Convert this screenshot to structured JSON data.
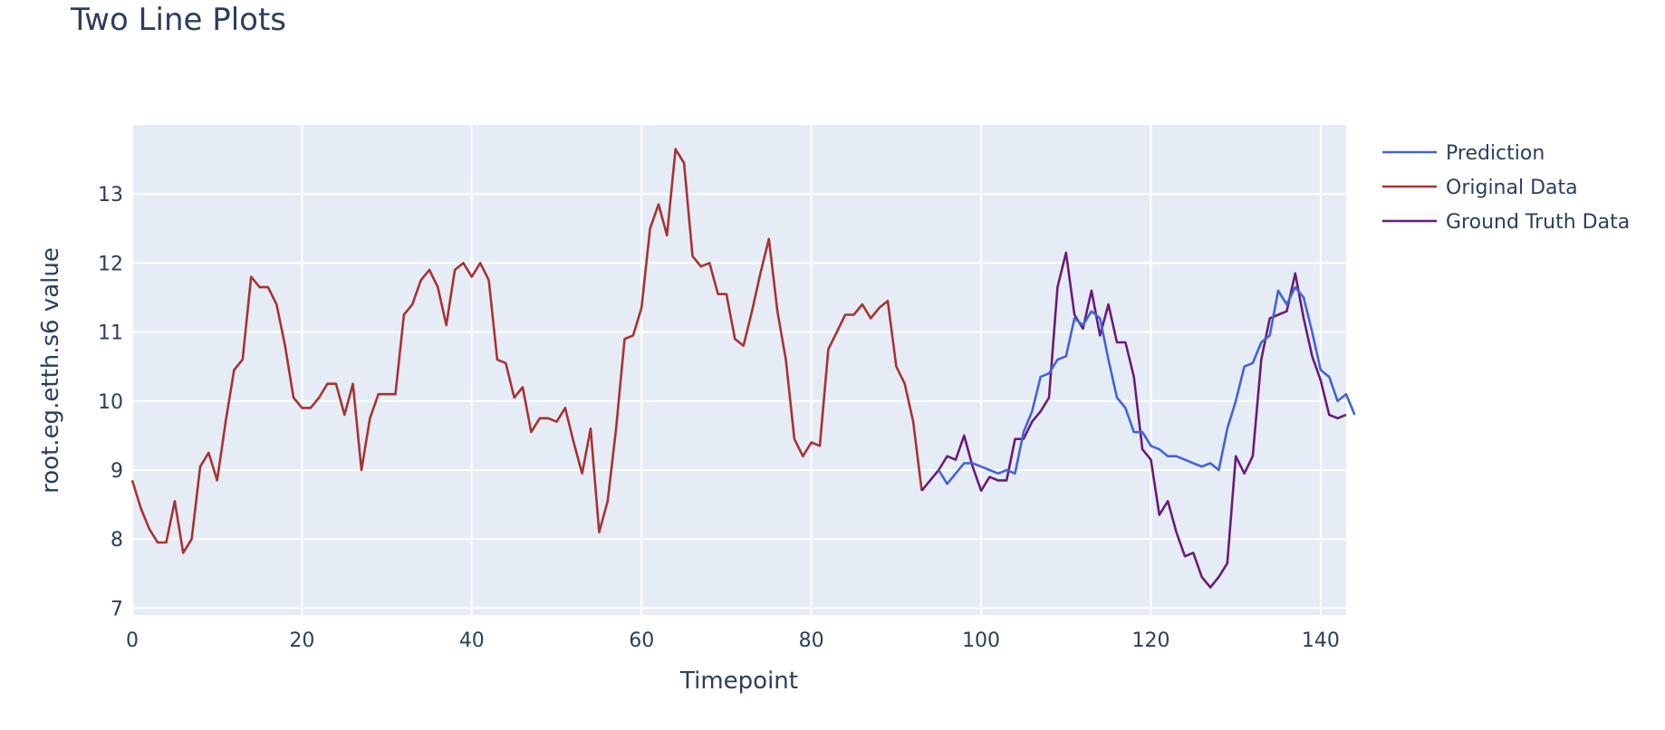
{
  "chart_data": {
    "type": "line",
    "title": "Two Line Plots",
    "xlabel": "Timepoint",
    "ylabel": "root.eg.etth.s6 value",
    "xlim": [
      0,
      143
    ],
    "ylim": [
      6.9,
      14
    ],
    "xticks": [
      0,
      20,
      40,
      60,
      80,
      100,
      120,
      140
    ],
    "yticks": [
      7,
      8,
      9,
      10,
      11,
      12,
      13
    ],
    "grid": true,
    "legend_position": "top-right",
    "plot_bg": "#e5ecf6",
    "series": [
      {
        "name": "Prediction",
        "color": "#4363d8",
        "x_start": 95,
        "values": [
          9.0,
          8.8,
          8.95,
          9.1,
          9.1,
          9.05,
          9.0,
          8.95,
          9.0,
          8.95,
          9.55,
          9.85,
          10.35,
          10.4,
          10.6,
          10.65,
          11.2,
          11.1,
          11.3,
          11.2,
          10.6,
          10.05,
          9.9,
          9.55,
          9.55,
          9.35,
          9.3,
          9.2,
          9.2,
          9.15,
          9.1,
          9.05,
          9.1,
          9.0,
          9.6,
          10.0,
          10.5,
          10.55,
          10.85,
          10.95,
          11.6,
          11.4,
          11.65,
          11.5,
          11.0,
          10.45,
          10.35,
          10.0,
          10.1,
          9.8
        ]
      },
      {
        "name": "Original Data",
        "color": "#a83232",
        "x_start": 0,
        "values": [
          8.85,
          8.45,
          8.15,
          7.95,
          7.95,
          8.55,
          7.8,
          8.0,
          9.05,
          9.25,
          8.85,
          9.7,
          10.45,
          10.6,
          11.8,
          11.65,
          11.65,
          11.4,
          10.8,
          10.05,
          9.9,
          9.9,
          10.05,
          10.25,
          10.25,
          9.8,
          10.25,
          9.0,
          9.75,
          10.1,
          10.1,
          10.1,
          11.25,
          11.4,
          11.75,
          11.9,
          11.65,
          11.1,
          11.9,
          12.0,
          11.8,
          12.0,
          11.75,
          10.6,
          10.55,
          10.05,
          10.2,
          9.55,
          9.75,
          9.75,
          9.7,
          9.9,
          9.4,
          8.95,
          9.6,
          8.1,
          8.55,
          9.6,
          10.9,
          10.95,
          11.35,
          12.5,
          12.85,
          12.4,
          13.65,
          13.45,
          12.1,
          11.95,
          12.0,
          11.55,
          11.55,
          10.9,
          10.8,
          11.3,
          11.85,
          12.35,
          11.3,
          10.6,
          9.45,
          9.2,
          9.4,
          9.35,
          10.75,
          11.0,
          11.25,
          11.25,
          11.4,
          11.2,
          11.35,
          11.45,
          10.5,
          10.25,
          9.7,
          8.7
        ]
      },
      {
        "name": "Ground Truth Data",
        "color": "#6a1b7a",
        "x_start": 93,
        "values": [
          8.7,
          8.85,
          9.0,
          9.2,
          9.15,
          9.5,
          9.05,
          8.7,
          8.9,
          8.85,
          8.85,
          9.45,
          9.45,
          9.7,
          9.85,
          10.05,
          11.65,
          12.15,
          11.25,
          11.05,
          11.6,
          10.95,
          11.4,
          10.85,
          10.85,
          10.35,
          9.3,
          9.15,
          8.35,
          8.55,
          8.1,
          7.75,
          7.8,
          7.45,
          7.3,
          7.45,
          7.65,
          9.2,
          8.95,
          9.2,
          10.6,
          11.2,
          11.25,
          11.3,
          11.85,
          11.2,
          10.65,
          10.3,
          9.8,
          9.75,
          9.8
        ]
      }
    ]
  }
}
